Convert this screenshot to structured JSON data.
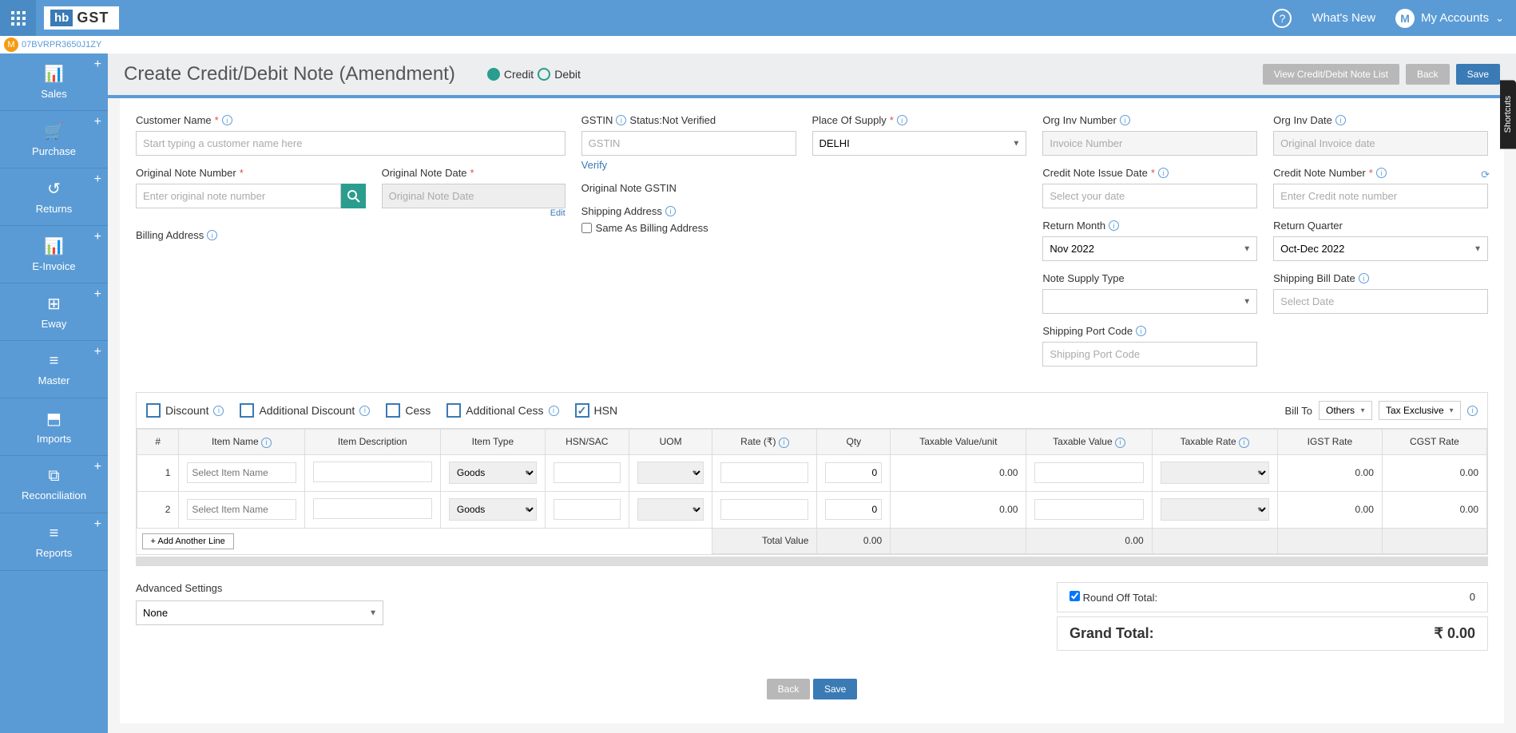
{
  "header": {
    "logo_hb": "hb",
    "logo_gst": "GST",
    "whats_new": "What's New",
    "my_accounts": "My Accounts",
    "avatar_letter": "M"
  },
  "sub_header": {
    "avatar": "M",
    "gstin": "07BVRPR3650J1ZY"
  },
  "sidebar": [
    {
      "label": "Sales",
      "icon": "📊"
    },
    {
      "label": "Purchase",
      "icon": "🛒"
    },
    {
      "label": "Returns",
      "icon": "↺"
    },
    {
      "label": "E-Invoice",
      "icon": "📊"
    },
    {
      "label": "Eway",
      "icon": "⊞"
    },
    {
      "label": "Master",
      "icon": "≡"
    },
    {
      "label": "Imports",
      "icon": "⬒"
    },
    {
      "label": "Reconciliation",
      "icon": "⧉"
    },
    {
      "label": "Reports",
      "icon": "≡"
    }
  ],
  "page": {
    "title": "Create Credit/Debit Note (Amendment)",
    "credit": "Credit",
    "debit": "Debit",
    "view_list": "View Credit/Debit Note List",
    "back": "Back",
    "save": "Save"
  },
  "form": {
    "customer_name": {
      "label": "Customer Name",
      "placeholder": "Start typing a customer name here"
    },
    "gstin": {
      "label": "GSTIN",
      "status": "Status:Not Verified",
      "placeholder": "GSTIN",
      "verify": "Verify"
    },
    "place_supply": {
      "label": "Place Of Supply",
      "value": "DELHI"
    },
    "org_inv_number": {
      "label": "Org Inv Number",
      "placeholder": "Invoice Number"
    },
    "org_inv_date": {
      "label": "Org Inv Date",
      "placeholder": "Original Invoice date"
    },
    "credit_issue_date": {
      "label": "Credit Note Issue Date",
      "placeholder": "Select your date"
    },
    "credit_note_number": {
      "label": "Credit Note Number",
      "placeholder": "Enter Credit note number"
    },
    "original_note_number": {
      "label": "Original Note Number",
      "placeholder": "Enter original note number"
    },
    "original_note_date": {
      "label": "Original Note Date",
      "placeholder": "Original Note Date"
    },
    "original_note_gstin": {
      "label": "Original Note GSTIN"
    },
    "return_month": {
      "label": "Return Month",
      "value": "Nov 2022"
    },
    "return_quarter": {
      "label": "Return Quarter",
      "value": "Oct-Dec 2022"
    },
    "billing_address": {
      "label": "Billing Address",
      "edit": "Edit"
    },
    "shipping_address": {
      "label": "Shipping Address",
      "same_as": "Same As Billing Address"
    },
    "note_supply_type": {
      "label": "Note Supply Type"
    },
    "shipping_bill_date": {
      "label": "Shipping Bill Date",
      "placeholder": "Select Date"
    },
    "shipping_port_code": {
      "label": "Shipping Port Code",
      "placeholder": "Shipping Port Code"
    }
  },
  "options": {
    "discount": "Discount",
    "add_discount": "Additional Discount",
    "cess": "Cess",
    "add_cess": "Additional Cess",
    "hsn": "HSN",
    "bill_to": "Bill To",
    "bill_to_val": "Others",
    "tax_mode": "Tax Exclusive"
  },
  "table": {
    "headers": [
      "#",
      "Item Name",
      "Item Description",
      "Item Type",
      "HSN/SAC",
      "UOM",
      "Rate (₹)",
      "Qty",
      "Taxable Value/unit",
      "Taxable Value",
      "Taxable Rate",
      "IGST Rate",
      "CGST Rate"
    ],
    "rows": [
      {
        "n": "1",
        "name_ph": "Select Item Name",
        "type": "Goods",
        "qty": "0",
        "tvu": "0.00",
        "igst": "0.00",
        "cgst": "0.00"
      },
      {
        "n": "2",
        "name_ph": "Select Item Name",
        "type": "Goods",
        "qty": "0",
        "tvu": "0.00",
        "igst": "0.00",
        "cgst": "0.00"
      }
    ],
    "add_line": "+ Add Another Line",
    "total_label": "Total Value",
    "total_qty": "0.00",
    "total_tv": "0.00"
  },
  "bottom": {
    "adv_settings": "Advanced Settings",
    "adv_value": "None",
    "round_off": "Round Off Total:",
    "round_off_val": "0",
    "grand_total": "Grand Total:",
    "grand_total_val": "₹ 0.00",
    "back": "Back",
    "save": "Save"
  },
  "shortcuts": "Shortcuts"
}
